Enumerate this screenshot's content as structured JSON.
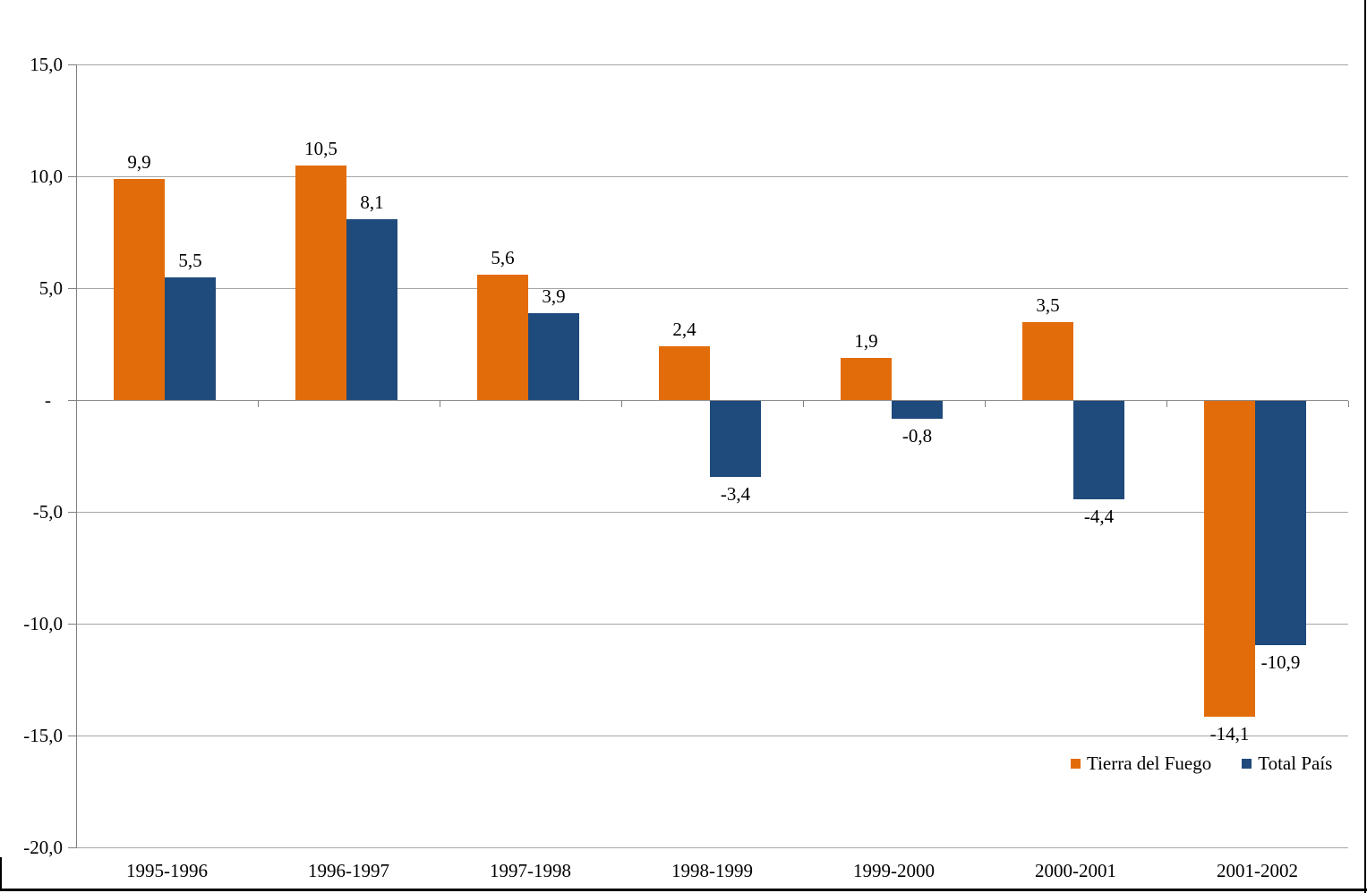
{
  "chart_data": {
    "type": "bar",
    "title": "",
    "categories": [
      "1995-1996",
      "1996-1997",
      "1997-1998",
      "1998-1999",
      "1999-2000",
      "2000-2001",
      "2001-2002"
    ],
    "series": [
      {
        "name": "Tierra del Fuego",
        "color": "#E36C0A",
        "values": [
          9.9,
          10.5,
          5.6,
          2.4,
          1.9,
          3.5,
          -14.1
        ],
        "labels": [
          "9,9",
          "10,5",
          "5,6",
          "2,4",
          "1,9",
          "3,5",
          "-14,1"
        ]
      },
      {
        "name": "Total País",
        "color": "#1F4A7C",
        "values": [
          5.5,
          8.1,
          3.9,
          -3.4,
          -0.8,
          -4.4,
          -10.9
        ],
        "labels": [
          "5,5",
          "8,1",
          "3,9",
          "-3,4",
          "-0,8",
          "-4,4",
          "-10,9"
        ]
      }
    ],
    "y_axis": {
      "min": -20,
      "max": 15,
      "step": 5,
      "tick_labels": [
        "15,0",
        "10,0",
        "5,0",
        "-",
        "-5,0",
        "-10,0",
        "-15,0",
        "-20,0"
      ]
    },
    "grid": true,
    "legend_position": "bottom-right",
    "gridline_color": "#A6A6A6",
    "axis_color": "#808080"
  }
}
